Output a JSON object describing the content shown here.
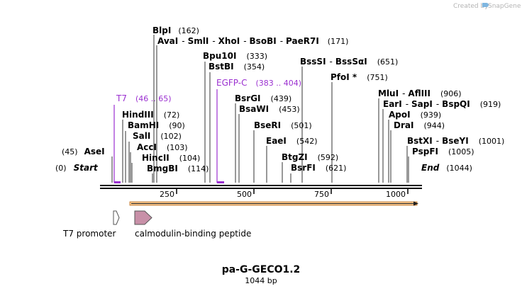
{
  "watermark": {
    "text": "Created by",
    "brand": "SnapGene",
    "icon": "snapgene-logo-icon"
  },
  "construct": {
    "name": "pa-G-GECO1.2",
    "length_label": "1044 bp",
    "length": 1044
  },
  "ends": {
    "start": {
      "label": "Start",
      "pos": "(0)"
    },
    "end": {
      "label": "End",
      "pos": "(1044)"
    }
  },
  "scale": {
    "ticks": [
      "250",
      "500",
      "750",
      "1000"
    ]
  },
  "sites": [
    {
      "parts": [
        "BlpI"
      ],
      "pos": "(162)"
    },
    {
      "parts": [
        "AvaI",
        "SmlI",
        "XhoI",
        "BsoBI",
        "PaeR7I"
      ],
      "pos": "(171)"
    },
    {
      "parts": [
        "Bpu10I"
      ],
      "pos": "(333)"
    },
    {
      "parts": [
        "BstBI"
      ],
      "pos": "(354)"
    },
    {
      "parts": [
        "BssSI",
        "BssSαI"
      ],
      "pos": "(651)"
    },
    {
      "parts": [
        "PfoI *"
      ],
      "pos": "(751)"
    },
    {
      "parts": [
        "HindIII"
      ],
      "pos": "(72)"
    },
    {
      "parts": [
        "BamHI"
      ],
      "pos": "(90)"
    },
    {
      "parts": [
        "SalI"
      ],
      "pos": "(102)"
    },
    {
      "parts": [
        "AccI"
      ],
      "pos": "(103)"
    },
    {
      "parts": [
        "HincII"
      ],
      "pos": "(104)"
    },
    {
      "parts": [
        "BmgBI"
      ],
      "pos": "(114)"
    },
    {
      "parts": [
        "AseI"
      ],
      "pos": "(45)"
    },
    {
      "parts": [
        "BsrGI"
      ],
      "pos": "(439)"
    },
    {
      "parts": [
        "BsaWI"
      ],
      "pos": "(453)"
    },
    {
      "parts": [
        "BseRI"
      ],
      "pos": "(501)"
    },
    {
      "parts": [
        "EaeI"
      ],
      "pos": "(542)"
    },
    {
      "parts": [
        "BtgZI"
      ],
      "pos": "(592)"
    },
    {
      "parts": [
        "BsrFI"
      ],
      "pos": "(621)"
    },
    {
      "parts": [
        "MluI",
        "AflIII"
      ],
      "pos": "(906)"
    },
    {
      "parts": [
        "EarI",
        "SapI",
        "BspQI"
      ],
      "pos": "(919)"
    },
    {
      "parts": [
        "ApoI"
      ],
      "pos": "(939)"
    },
    {
      "parts": [
        "DraI"
      ],
      "pos": "(944)"
    },
    {
      "parts": [
        "BstXI",
        "BseYI"
      ],
      "pos": "(1001)"
    },
    {
      "parts": [
        "PspFI"
      ],
      "pos": "(1005)"
    }
  ],
  "primers": [
    {
      "name": "T7",
      "range": "(46 .. 65)"
    },
    {
      "name": "EGFP-C",
      "range": "(383 .. 404)"
    }
  ],
  "features": [
    {
      "name": "T7 promoter",
      "type": "promoter"
    },
    {
      "name": "calmodulin-binding peptide",
      "type": "misc_feature"
    }
  ],
  "colors": {
    "primer": "#9b30d0",
    "orf_fill": "#f6c890",
    "orf_stroke": "#c07020",
    "cbp_fill": "#c890a8",
    "backbone": "#000000"
  }
}
